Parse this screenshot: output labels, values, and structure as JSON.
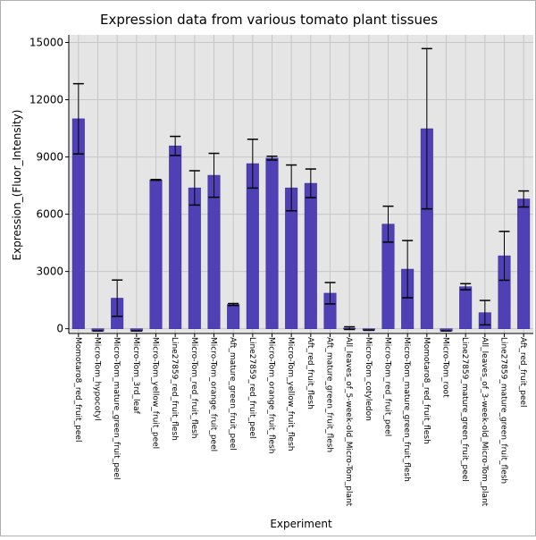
{
  "chart_data": {
    "type": "bar",
    "title": "Expression data from various tomato plant tissues",
    "xlabel": "Experiment",
    "ylabel": "Expression_(Fluor_Intensity)",
    "ylim": [
      -250,
      15400
    ],
    "yticks": [
      0,
      3000,
      6000,
      9000,
      12000,
      15000
    ],
    "grid": true,
    "colors": {
      "bar": "#4f40b6",
      "bar_edge": "#3a2f9a",
      "plot_bg": "#e5e5e5",
      "grid": "#c6c6c6",
      "error_bar": "#000000"
    },
    "categories": [
      "Momotaro8_red_fruit_peel",
      "Micro-Tom_hypocotyl",
      "Micro-Tom_mature_green_fruit_peel",
      "Micro-Tom_3rd_leaf",
      "Micro-Tom_yellow_fruit_peel",
      "Line27859_red_fruit_flesh",
      "Micro-Tom_red_fruit_flesh",
      "Micro-Tom_orange_fruit_peel",
      "Aft_mature_green_fruit_peel",
      "Line27859_red_fruit_peel",
      "Micro-Tom_orange_fruit_flesh",
      "Micro-Tom_yellow_fruit_flesh",
      "Aft_red_fruit_flesh",
      "Aft_mature_green_fruit_flesh",
      "All_leaves_of_5-week-old_Micro-Tom_plant",
      "Micro-Tom_cotyledon",
      "Micro-Tom_red_fruit_peel",
      "Micro-Tom_mature_green_fruit_flesh",
      "Momotaro8_red_fruit_flesh",
      "Micro-Tom_root",
      "Line27859_mature_green_fruit_peel",
      "All_leaves_of_3-week-old_Micro-Tom_plant",
      "Line27859_mature_green_fruit_flesh",
      "Aft_red_fruit_peel"
    ],
    "values": [
      11000,
      -120,
      1600,
      -120,
      7800,
      9580,
      7380,
      8040,
      1270,
      8650,
      8940,
      7380,
      7620,
      1860,
      30,
      -80,
      5480,
      3120,
      10480,
      -120,
      2200,
      840,
      3820,
      6800
    ],
    "errors": [
      1840,
      0,
      950,
      0,
      20,
      500,
      900,
      1150,
      50,
      1280,
      100,
      1200,
      750,
      560,
      70,
      0,
      940,
      1500,
      4200,
      0,
      160,
      640,
      1280,
      420
    ]
  }
}
